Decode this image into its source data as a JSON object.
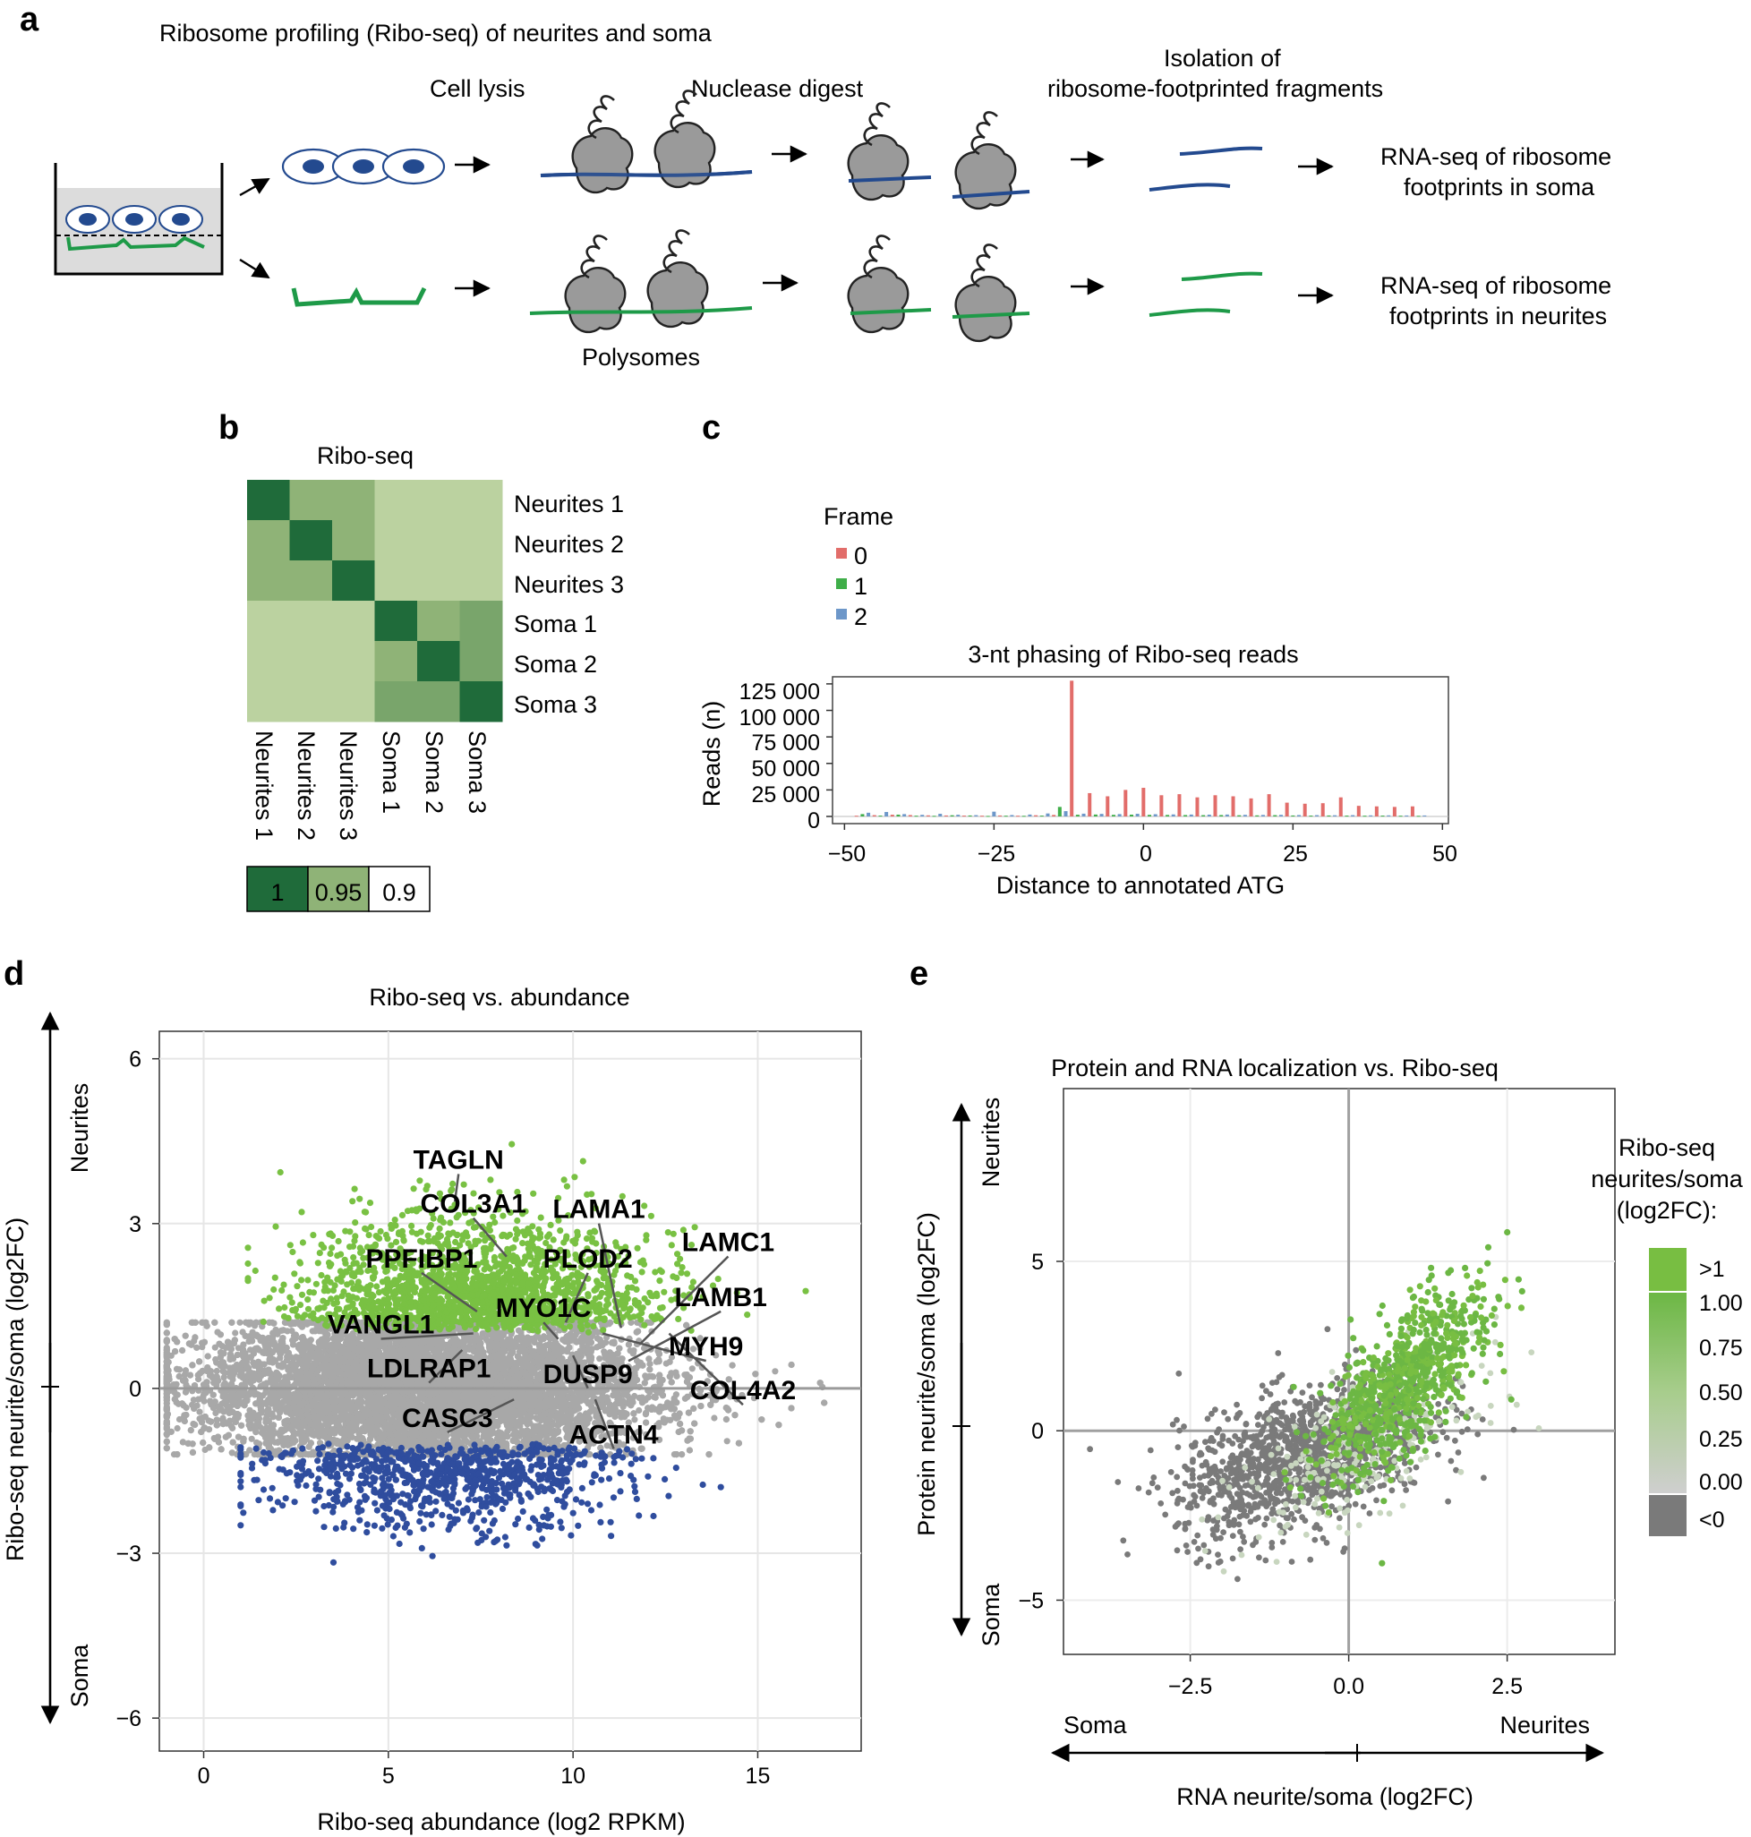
{
  "panels": {
    "a": {
      "label": "a",
      "title": "Ribosome profiling (Ribo-seq) of neurites and soma",
      "steps": [
        "Cell lysis",
        "Nuclease digest",
        "Isolation of",
        "ribosome-footprinted fragments"
      ],
      "polysomes": "Polysomes",
      "soma_result_1": "RNA-seq of ribosome",
      "soma_result_2": "footprints in soma",
      "neurite_result_1": "RNA-seq of ribosome",
      "neurite_result_2": "footprints in neurites",
      "colors": {
        "soma": "#234a8f",
        "neurite": "#1e9a48",
        "ribosome": "#9a9a9a"
      }
    },
    "b": {
      "label": "b"
    },
    "c": {
      "label": "c"
    },
    "d": {
      "label": "d",
      "side_top": "Neurites",
      "side_bottom": "Soma"
    },
    "e": {
      "label": "e",
      "side_top": "Neurites",
      "side_bottom": "Soma",
      "bottom_left": "Soma",
      "bottom_right": "Neurites"
    }
  },
  "chart_data": [
    {
      "id": "b",
      "type": "heatmap",
      "title": "Ribo-seq",
      "rows": [
        "Neurites 1",
        "Neurites 2",
        "Neurites 3",
        "Soma 1",
        "Soma 2",
        "Soma 3"
      ],
      "cols": [
        "Neurites 1",
        "Neurites 2",
        "Neurites 3",
        "Soma 1",
        "Soma 2",
        "Soma 3"
      ],
      "values": [
        [
          1.0,
          0.95,
          0.95,
          0.91,
          0.91,
          0.91
        ],
        [
          0.95,
          1.0,
          0.95,
          0.91,
          0.91,
          0.91
        ],
        [
          0.95,
          0.95,
          1.0,
          0.91,
          0.91,
          0.91
        ],
        [
          0.91,
          0.91,
          0.91,
          1.0,
          0.95,
          0.96
        ],
        [
          0.91,
          0.91,
          0.91,
          0.95,
          1.0,
          0.96
        ],
        [
          0.91,
          0.91,
          0.91,
          0.96,
          0.96,
          1.0
        ]
      ],
      "legend": [
        "1",
        "0.95",
        "0.9"
      ],
      "colors": {
        "high": "#1f6b3a",
        "mid": "#8fb377",
        "low": "#ffffff"
      }
    },
    {
      "id": "c",
      "type": "bar",
      "title": "3-nt phasing of Ribo-seq reads",
      "xlabel": "Distance to annotated ATG",
      "ylabel": "Reads (n)",
      "legend_title": "Frame",
      "legend": [
        {
          "label": "0",
          "color": "#e26d6a"
        },
        {
          "label": "1",
          "color": "#3fae49"
        },
        {
          "label": "2",
          "color": "#6d97c9"
        }
      ],
      "xlim": [
        -52,
        51
      ],
      "ylim": [
        0,
        130000
      ],
      "xticks": [
        "−50",
        "−25",
        "0",
        "25",
        "50"
      ],
      "xtick_values": [
        -50,
        -25,
        0,
        25,
        50
      ],
      "yticks": [
        "0",
        "25 000",
        "50 000",
        "75 000",
        "100 000",
        "125 000"
      ],
      "ytick_values": [
        0,
        25000,
        50000,
        75000,
        100000,
        125000
      ],
      "series": [
        {
          "name": "0",
          "x": [
            -48,
            -45,
            -42,
            -39,
            -36,
            -33,
            -30,
            -27,
            -24,
            -21,
            -18,
            -15,
            -12,
            -9,
            -6,
            -3,
            0,
            3,
            6,
            9,
            12,
            15,
            18,
            21,
            24,
            27,
            30,
            33,
            36,
            39,
            42,
            45
          ],
          "values": [
            700,
            1200,
            1600,
            1300,
            1000,
            900,
            800,
            700,
            900,
            700,
            1100,
            1400,
            128000,
            22000,
            19000,
            25000,
            27000,
            20000,
            21000,
            18000,
            20000,
            19000,
            17000,
            21000,
            13000,
            12000,
            12500,
            18000,
            10000,
            9500,
            9000,
            9500
          ]
        },
        {
          "name": "1",
          "x": [
            -47,
            -44,
            -41,
            -38,
            -35,
            -32,
            -29,
            -26,
            -23,
            -20,
            -17,
            -14,
            -11,
            -8,
            -5,
            -2,
            1,
            4,
            7,
            10,
            13,
            16,
            19,
            22,
            25,
            28,
            31,
            34,
            37,
            40,
            43,
            46
          ],
          "values": [
            2200,
            800,
            1700,
            700,
            600,
            1100,
            900,
            500,
            700,
            600,
            800,
            9000,
            1600,
            1800,
            1500,
            1700,
            1500,
            1400,
            1300,
            1200,
            1300,
            1100,
            1000,
            1200,
            900,
            800,
            900,
            800,
            700,
            800,
            700,
            600
          ]
        },
        {
          "name": "2",
          "x": [
            -46,
            -43,
            -40,
            -37,
            -34,
            -31,
            -28,
            -25,
            -22,
            -19,
            -16,
            -13,
            -10,
            -7,
            -4,
            -1,
            2,
            5,
            8,
            11,
            14,
            17,
            20,
            23,
            26,
            29,
            32,
            35,
            38,
            41,
            44,
            47
          ],
          "values": [
            3500,
            4200,
            2200,
            1500,
            2500,
            1600,
            1200,
            4500,
            1300,
            1800,
            2800,
            5000,
            2600,
            2400,
            2200,
            2500,
            2100,
            1900,
            1800,
            1700,
            1800,
            1500,
            1400,
            1500,
            1300,
            1200,
            1100,
            1200,
            1000,
            1000,
            900,
            900
          ]
        }
      ]
    },
    {
      "id": "d",
      "type": "scatter",
      "title": "Ribo-seq vs. abundance",
      "xlabel": "Ribo-seq abundance (log2 RPKM)",
      "ylabel": "Ribo-seq neurite/soma (log2FC)",
      "xlim": [
        -1.2,
        17.8
      ],
      "ylim": [
        -6.6,
        6.5
      ],
      "xticks": [
        "0",
        "5",
        "10",
        "15"
      ],
      "xtick_values": [
        0,
        5,
        10,
        15
      ],
      "yticks": [
        "−6",
        "−3",
        "0",
        "3",
        "6"
      ],
      "ytick_values": [
        -6,
        -3,
        0,
        3,
        6
      ],
      "colors": {
        "up": "#79c143",
        "none": "#a8a8a8",
        "down": "#2f4d9e"
      },
      "counts": {
        "grey": 14000,
        "green": 1800,
        "blue": 900
      },
      "labels": [
        {
          "gene": "TAGLN",
          "x": 6.9,
          "y": 4.0,
          "px": 6.8,
          "py": 3.4
        },
        {
          "gene": "COL3A1",
          "x": 7.3,
          "y": 3.2,
          "px": 8.2,
          "py": 2.4
        },
        {
          "gene": "LAMA1",
          "x": 10.7,
          "y": 3.1,
          "px": 11.3,
          "py": 1.1
        },
        {
          "gene": "LAMC1",
          "x": 14.2,
          "y": 2.5,
          "px": 11.8,
          "py": 0.8
        },
        {
          "gene": "PPFIBP1",
          "x": 5.9,
          "y": 2.2,
          "px": 7.4,
          "py": 1.4
        },
        {
          "gene": "PLOD2",
          "x": 10.4,
          "y": 2.2,
          "px": 9.8,
          "py": 1.2
        },
        {
          "gene": "LAMB1",
          "x": 14.0,
          "y": 1.5,
          "px": 11.5,
          "py": 0.5
        },
        {
          "gene": "MYO1C",
          "x": 9.2,
          "y": 1.3,
          "px": 9.6,
          "py": 0.9
        },
        {
          "gene": "VANGL1",
          "x": 4.8,
          "y": 1.0,
          "px": 7.3,
          "py": 1.0
        },
        {
          "gene": "MYH9",
          "x": 13.6,
          "y": 0.6,
          "px": 10.8,
          "py": 1.0
        },
        {
          "gene": "LDLRAP1",
          "x": 6.1,
          "y": 0.2,
          "px": 7.0,
          "py": 0.7
        },
        {
          "gene": "DUSP9",
          "x": 10.4,
          "y": 0.1,
          "px": 10.0,
          "py": 0.6
        },
        {
          "gene": "COL4A2",
          "x": 14.6,
          "y": -0.2,
          "px": 12.6,
          "py": 1.0
        },
        {
          "gene": "CASC3",
          "x": 6.6,
          "y": -0.7,
          "px": 8.4,
          "py": -0.2
        },
        {
          "gene": "ACTN4",
          "x": 11.1,
          "y": -1.0,
          "px": 10.6,
          "py": -0.2
        }
      ]
    },
    {
      "id": "e",
      "type": "scatter",
      "title": "Protein and RNA localization vs. Ribo-seq",
      "xlabel": "RNA neurite/soma (log2FC)",
      "ylabel": "Protein neurite/soma (log2FC)",
      "xlim": [
        -4.5,
        4.2
      ],
      "ylim": [
        -6.6,
        10.1
      ],
      "xticks": [
        "−2.5",
        "0.0",
        "2.5"
      ],
      "xtick_values": [
        -2.5,
        0,
        2.5
      ],
      "yticks": [
        "−5",
        "0",
        "5"
      ],
      "ytick_values": [
        -5,
        0,
        5
      ],
      "legend_title": [
        "Ribo-seq",
        "neurites/soma",
        "(log2FC):"
      ],
      "legend_labels": [
        ">1",
        "1.00",
        "0.75",
        "0.50",
        "0.25",
        "0.00",
        "<0"
      ],
      "colors": {
        "gt1": "#78be42",
        "high": "#6cb744",
        "low": "#c8d6bf",
        "neg": "#7a7a7a"
      },
      "counts": {
        "grey": 1300,
        "green": 800,
        "light": 250
      }
    }
  ]
}
